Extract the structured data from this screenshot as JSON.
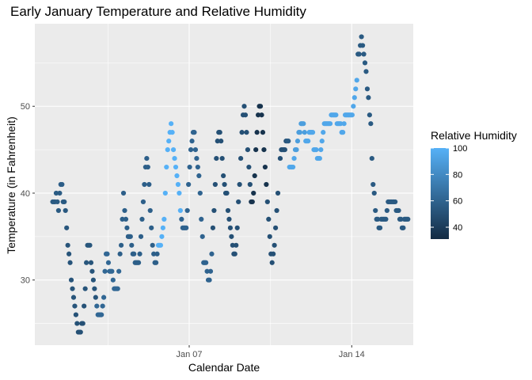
{
  "chart_data": {
    "type": "scatter",
    "title": "Early January Temperature and Relative Humidity",
    "xlabel": "Calendar Date",
    "ylabel": "Temperature (in Fahrenheit)",
    "x_ticks": [
      {
        "label": "Jan 07",
        "value": 7.0
      },
      {
        "label": "Jan 14",
        "value": 14.0
      }
    ],
    "y_ticks": [
      30,
      40,
      50
    ],
    "xlim": [
      0.35,
      16.65
    ],
    "ylim": [
      22.5,
      59.5
    ],
    "grid": true,
    "panel_background": "#ebebeb",
    "grid_color": "#ffffff",
    "legend": {
      "title": "Relative Humidity",
      "position": "right",
      "ticks": [
        40,
        60,
        80,
        100
      ],
      "range": [
        31,
        100
      ],
      "low_color": "#132b43",
      "high_color": "#56b1f7"
    },
    "points": [
      [
        1.12,
        39,
        55
      ],
      [
        1.17,
        39,
        55
      ],
      [
        1.22,
        39,
        55
      ],
      [
        1.27,
        40,
        56
      ],
      [
        1.32,
        39,
        55
      ],
      [
        1.37,
        38,
        55
      ],
      [
        1.42,
        40,
        56
      ],
      [
        1.47,
        41,
        57
      ],
      [
        1.52,
        41,
        57
      ],
      [
        1.57,
        39,
        55
      ],
      [
        1.62,
        39,
        55
      ],
      [
        1.67,
        38,
        54
      ],
      [
        1.72,
        36,
        53
      ],
      [
        1.77,
        34,
        52
      ],
      [
        1.82,
        33,
        52
      ],
      [
        1.87,
        32,
        52
      ],
      [
        1.92,
        30,
        52
      ],
      [
        1.97,
        29,
        52
      ],
      [
        2.02,
        28,
        52
      ],
      [
        2.07,
        27,
        52
      ],
      [
        2.12,
        26,
        51
      ],
      [
        2.17,
        25,
        51
      ],
      [
        2.22,
        24,
        50
      ],
      [
        2.27,
        24,
        50
      ],
      [
        2.32,
        24,
        50
      ],
      [
        2.37,
        25,
        50
      ],
      [
        2.42,
        25,
        50
      ],
      [
        2.47,
        27,
        51
      ],
      [
        2.52,
        29,
        52
      ],
      [
        2.57,
        32,
        53
      ],
      [
        2.62,
        34,
        53
      ],
      [
        2.67,
        34,
        53
      ],
      [
        2.72,
        34,
        53
      ],
      [
        2.77,
        32,
        52
      ],
      [
        2.82,
        31,
        52
      ],
      [
        2.87,
        30,
        52
      ],
      [
        2.92,
        29,
        52
      ],
      [
        2.97,
        28,
        52
      ],
      [
        3.02,
        27,
        62
      ],
      [
        3.07,
        26,
        62
      ],
      [
        3.12,
        26,
        62
      ],
      [
        3.17,
        26,
        62
      ],
      [
        3.22,
        26,
        62
      ],
      [
        3.27,
        27,
        62
      ],
      [
        3.32,
        28,
        62
      ],
      [
        3.37,
        31,
        62
      ],
      [
        3.42,
        33,
        62
      ],
      [
        3.47,
        33,
        62
      ],
      [
        3.52,
        32,
        62
      ],
      [
        3.57,
        31,
        62
      ],
      [
        3.62,
        31,
        62
      ],
      [
        3.67,
        31,
        62
      ],
      [
        3.72,
        30,
        62
      ],
      [
        3.77,
        29,
        62
      ],
      [
        3.82,
        29,
        62
      ],
      [
        3.87,
        29,
        62
      ],
      [
        3.92,
        29,
        62
      ],
      [
        3.97,
        31,
        62
      ],
      [
        4.02,
        33,
        58
      ],
      [
        4.07,
        34,
        58
      ],
      [
        4.12,
        37,
        58
      ],
      [
        4.17,
        40,
        58
      ],
      [
        4.22,
        38,
        58
      ],
      [
        4.27,
        37,
        58
      ],
      [
        4.32,
        36,
        58
      ],
      [
        4.37,
        35,
        58
      ],
      [
        4.42,
        35,
        58
      ],
      [
        4.47,
        35,
        58
      ],
      [
        4.52,
        34,
        58
      ],
      [
        4.57,
        33,
        58
      ],
      [
        4.62,
        33,
        58
      ],
      [
        4.67,
        32,
        58
      ],
      [
        4.72,
        32,
        58
      ],
      [
        4.77,
        32,
        58
      ],
      [
        4.82,
        32,
        58
      ],
      [
        4.87,
        33,
        58
      ],
      [
        4.92,
        35,
        58
      ],
      [
        4.97,
        37,
        58
      ],
      [
        5.02,
        39,
        58
      ],
      [
        5.07,
        41,
        58
      ],
      [
        5.12,
        43,
        58
      ],
      [
        5.17,
        44,
        58
      ],
      [
        5.22,
        43,
        58
      ],
      [
        5.27,
        41,
        58
      ],
      [
        5.32,
        38,
        58
      ],
      [
        5.37,
        36,
        58
      ],
      [
        5.42,
        34,
        58
      ],
      [
        5.47,
        33,
        58
      ],
      [
        5.52,
        32,
        58
      ],
      [
        5.57,
        32,
        58
      ],
      [
        5.62,
        33,
        58
      ],
      [
        5.67,
        34,
        100
      ],
      [
        5.72,
        34,
        100
      ],
      [
        5.77,
        34,
        100
      ],
      [
        5.82,
        35,
        100
      ],
      [
        5.87,
        36,
        100
      ],
      [
        5.92,
        37,
        100
      ],
      [
        5.97,
        40,
        100
      ],
      [
        6.02,
        43,
        100
      ],
      [
        6.07,
        45,
        100
      ],
      [
        6.12,
        46,
        100
      ],
      [
        6.17,
        47,
        100
      ],
      [
        6.22,
        48,
        100
      ],
      [
        6.27,
        47,
        100
      ],
      [
        6.32,
        45,
        100
      ],
      [
        6.37,
        44,
        100
      ],
      [
        6.42,
        43,
        100
      ],
      [
        6.47,
        42,
        100
      ],
      [
        6.52,
        41,
        100
      ],
      [
        6.57,
        40,
        100
      ],
      [
        6.62,
        38,
        100
      ],
      [
        6.67,
        37,
        60
      ],
      [
        6.72,
        36,
        60
      ],
      [
        6.77,
        36,
        60
      ],
      [
        6.82,
        36,
        60
      ],
      [
        6.87,
        36,
        60
      ],
      [
        6.92,
        38,
        60
      ],
      [
        6.97,
        41,
        60
      ],
      [
        7.02,
        43,
        60
      ],
      [
        7.07,
        45,
        60
      ],
      [
        7.12,
        46,
        60
      ],
      [
        7.17,
        47,
        60
      ],
      [
        7.22,
        47,
        60
      ],
      [
        7.27,
        45,
        60
      ],
      [
        7.32,
        44,
        60
      ],
      [
        7.37,
        43,
        60
      ],
      [
        7.42,
        42,
        60
      ],
      [
        7.47,
        40,
        60
      ],
      [
        7.52,
        37,
        60
      ],
      [
        7.57,
        35,
        60
      ],
      [
        7.62,
        32,
        60
      ],
      [
        7.67,
        32,
        60
      ],
      [
        7.72,
        32,
        60
      ],
      [
        7.77,
        31,
        60
      ],
      [
        7.82,
        30,
        60
      ],
      [
        7.87,
        30,
        60
      ],
      [
        7.92,
        31,
        60
      ],
      [
        7.97,
        33,
        60
      ],
      [
        8.02,
        36,
        50
      ],
      [
        8.07,
        38,
        50
      ],
      [
        8.12,
        41,
        50
      ],
      [
        8.17,
        44,
        50
      ],
      [
        8.22,
        46,
        50
      ],
      [
        8.27,
        47,
        50
      ],
      [
        8.32,
        47,
        50
      ],
      [
        8.37,
        46,
        50
      ],
      [
        8.42,
        44,
        50
      ],
      [
        8.47,
        42,
        50
      ],
      [
        8.52,
        41,
        50
      ],
      [
        8.57,
        40,
        50
      ],
      [
        8.62,
        40,
        50
      ],
      [
        8.67,
        38,
        50
      ],
      [
        8.72,
        37,
        50
      ],
      [
        8.77,
        36,
        50
      ],
      [
        8.82,
        35,
        50
      ],
      [
        8.87,
        34,
        50
      ],
      [
        8.92,
        33,
        50
      ],
      [
        8.97,
        33,
        50
      ],
      [
        9.02,
        34,
        50
      ],
      [
        9.07,
        36,
        50
      ],
      [
        9.12,
        39,
        50
      ],
      [
        9.17,
        41,
        50
      ],
      [
        9.22,
        44,
        50
      ],
      [
        9.27,
        47,
        50
      ],
      [
        9.32,
        49,
        50
      ],
      [
        9.37,
        50,
        50
      ],
      [
        9.42,
        49,
        50
      ],
      [
        9.47,
        47,
        50
      ],
      [
        9.52,
        45,
        50
      ],
      [
        9.57,
        43,
        50
      ],
      [
        9.62,
        41,
        50
      ],
      [
        9.67,
        39,
        35
      ],
      [
        9.72,
        39,
        35
      ],
      [
        9.77,
        40,
        35
      ],
      [
        9.82,
        42,
        35
      ],
      [
        9.87,
        45,
        35
      ],
      [
        9.92,
        47,
        35
      ],
      [
        9.97,
        49,
        35
      ],
      [
        10.02,
        50,
        35
      ],
      [
        10.07,
        50,
        35
      ],
      [
        10.12,
        49,
        35
      ],
      [
        10.17,
        47,
        35
      ],
      [
        10.22,
        45,
        35
      ],
      [
        10.27,
        43,
        35
      ],
      [
        10.32,
        41,
        35
      ],
      [
        10.37,
        39,
        50
      ],
      [
        10.42,
        37,
        50
      ],
      [
        10.47,
        35,
        50
      ],
      [
        10.52,
        33,
        50
      ],
      [
        10.57,
        32,
        50
      ],
      [
        10.62,
        33,
        50
      ],
      [
        10.67,
        34,
        50
      ],
      [
        10.72,
        36,
        50
      ],
      [
        10.77,
        38,
        50
      ],
      [
        10.82,
        40,
        50
      ],
      [
        10.92,
        44,
        50
      ],
      [
        10.97,
        45,
        50
      ],
      [
        11.02,
        45,
        50
      ],
      [
        11.07,
        45,
        50
      ],
      [
        11.12,
        45,
        50
      ],
      [
        11.17,
        46,
        50
      ],
      [
        11.22,
        46,
        55
      ],
      [
        11.27,
        46,
        55
      ],
      [
        11.32,
        43,
        95
      ],
      [
        11.37,
        43,
        95
      ],
      [
        11.42,
        43,
        95
      ],
      [
        11.47,
        43,
        95
      ],
      [
        11.52,
        44,
        95
      ],
      [
        11.57,
        45,
        90
      ],
      [
        11.62,
        45,
        90
      ],
      [
        11.67,
        46,
        90
      ],
      [
        11.72,
        47,
        90
      ],
      [
        11.77,
        47,
        90
      ],
      [
        11.82,
        48,
        90
      ],
      [
        11.87,
        48,
        90
      ],
      [
        11.92,
        48,
        90
      ],
      [
        11.97,
        47,
        90
      ],
      [
        12.02,
        46,
        95
      ],
      [
        12.07,
        46,
        95
      ],
      [
        12.12,
        46,
        95
      ],
      [
        12.17,
        47,
        95
      ],
      [
        12.22,
        47,
        95
      ],
      [
        12.27,
        47,
        95
      ],
      [
        12.32,
        47,
        95
      ],
      [
        12.37,
        45,
        95
      ],
      [
        12.42,
        45,
        95
      ],
      [
        12.47,
        45,
        95
      ],
      [
        12.52,
        44,
        95
      ],
      [
        12.57,
        44,
        95
      ],
      [
        12.62,
        44,
        95
      ],
      [
        12.67,
        45,
        95
      ],
      [
        12.72,
        46,
        95
      ],
      [
        12.77,
        47,
        95
      ],
      [
        12.82,
        48,
        95
      ],
      [
        12.87,
        48,
        95
      ],
      [
        12.92,
        48,
        95
      ],
      [
        12.97,
        48,
        95
      ],
      [
        13.02,
        48,
        95
      ],
      [
        13.07,
        48,
        95
      ],
      [
        13.12,
        49,
        95
      ],
      [
        13.17,
        49,
        95
      ],
      [
        13.22,
        49,
        95
      ],
      [
        13.27,
        49,
        95
      ],
      [
        13.32,
        49,
        95
      ],
      [
        13.37,
        48,
        95
      ],
      [
        13.42,
        48,
        95
      ],
      [
        13.47,
        48,
        95
      ],
      [
        13.52,
        48,
        95
      ],
      [
        13.57,
        47,
        95
      ],
      [
        13.62,
        47,
        95
      ],
      [
        13.67,
        48,
        95
      ],
      [
        13.72,
        49,
        95
      ],
      [
        13.77,
        49,
        95
      ],
      [
        13.82,
        49,
        95
      ],
      [
        13.87,
        49,
        95
      ],
      [
        13.92,
        49,
        95
      ],
      [
        13.97,
        49,
        95
      ],
      [
        14.02,
        49,
        95
      ],
      [
        14.07,
        50,
        95
      ],
      [
        14.12,
        51,
        95
      ],
      [
        14.17,
        52,
        95
      ],
      [
        14.22,
        53,
        95
      ],
      [
        14.27,
        56,
        55
      ],
      [
        14.32,
        56,
        55
      ],
      [
        14.37,
        57,
        55
      ],
      [
        14.42,
        58,
        55
      ],
      [
        14.47,
        57,
        55
      ],
      [
        14.52,
        56,
        55
      ],
      [
        14.57,
        55,
        55
      ],
      [
        14.62,
        54,
        55
      ],
      [
        14.67,
        52,
        55
      ],
      [
        14.72,
        51,
        55
      ],
      [
        14.77,
        49,
        55
      ],
      [
        14.82,
        48,
        55
      ],
      [
        14.87,
        44,
        55
      ],
      [
        14.92,
        41,
        55
      ],
      [
        14.97,
        40,
        55
      ],
      [
        15.02,
        38,
        55
      ],
      [
        15.07,
        37,
        55
      ],
      [
        15.12,
        37,
        55
      ],
      [
        15.17,
        36,
        55
      ],
      [
        15.22,
        36,
        55
      ],
      [
        15.27,
        37,
        55
      ],
      [
        15.32,
        37,
        55
      ],
      [
        15.37,
        37,
        55
      ],
      [
        15.42,
        37,
        55
      ],
      [
        15.47,
        37,
        55
      ],
      [
        15.52,
        38,
        55
      ],
      [
        15.57,
        39,
        55
      ],
      [
        15.62,
        39,
        55
      ],
      [
        15.67,
        39,
        55
      ],
      [
        15.72,
        39,
        55
      ],
      [
        15.77,
        39,
        55
      ],
      [
        15.82,
        39,
        55
      ],
      [
        15.87,
        39,
        55
      ],
      [
        15.92,
        38,
        55
      ],
      [
        15.97,
        38,
        55
      ],
      [
        16.02,
        38,
        55
      ],
      [
        16.07,
        37,
        55
      ],
      [
        16.12,
        37,
        55
      ],
      [
        16.17,
        36,
        55
      ],
      [
        16.22,
        36,
        55
      ],
      [
        16.27,
        37,
        55
      ],
      [
        16.32,
        37,
        55
      ],
      [
        16.37,
        37,
        55
      ],
      [
        16.42,
        37,
        55
      ]
    ]
  }
}
